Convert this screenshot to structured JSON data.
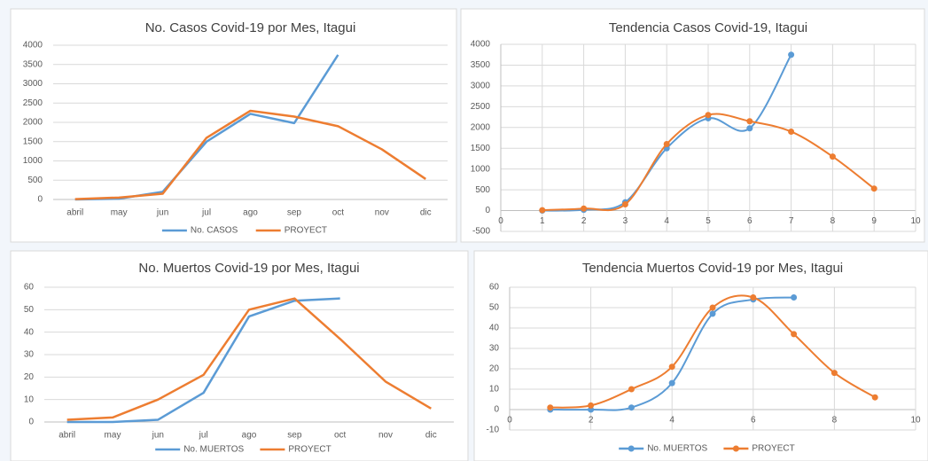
{
  "chart_data": [
    {
      "type": "line",
      "title": "No. Casos Covid-19 por Mes, Itagui",
      "categories": [
        "abril",
        "may",
        "jun",
        "jul",
        "ago",
        "sep",
        "oct",
        "nov",
        "dic"
      ],
      "series": [
        {
          "name": "No. CASOS",
          "color": "#5b9bd5",
          "values": [
            0,
            20,
            200,
            1500,
            2220,
            1980,
            3750,
            null,
            null
          ]
        },
        {
          "name": "PROYECT",
          "color": "#ed7d31",
          "values": [
            10,
            50,
            150,
            1600,
            2300,
            2150,
            1900,
            1300,
            530
          ]
        }
      ],
      "ylim": [
        0,
        4000
      ],
      "yticks": [
        0,
        500,
        1000,
        1500,
        2000,
        2500,
        3000,
        3500,
        4000
      ],
      "grid": true,
      "legend": "bottom"
    },
    {
      "type": "scatter",
      "title": "Tendencia Casos Covid-19, Itagui",
      "series": [
        {
          "name": "No. CASOS",
          "color": "#5b9bd5",
          "x": [
            1,
            2,
            3,
            4,
            5,
            6,
            7
          ],
          "values": [
            0,
            20,
            200,
            1500,
            2220,
            1980,
            3750
          ]
        },
        {
          "name": "PROYECT",
          "color": "#ed7d31",
          "x": [
            1,
            2,
            3,
            4,
            5,
            6,
            7,
            8,
            9
          ],
          "values": [
            10,
            50,
            150,
            1600,
            2300,
            2150,
            1900,
            1300,
            530
          ]
        }
      ],
      "xlim": [
        0,
        10
      ],
      "xticks": [
        0,
        1,
        2,
        3,
        4,
        5,
        6,
        7,
        8,
        9,
        10
      ],
      "ylim": [
        -500,
        4000
      ],
      "yticks": [
        -500,
        0,
        500,
        1000,
        1500,
        2000,
        2500,
        3000,
        3500,
        4000
      ],
      "grid": true,
      "smooth": true
    },
    {
      "type": "line",
      "title": "No. Muertos Covid-19 por Mes, Itagui",
      "categories": [
        "abril",
        "may",
        "jun",
        "jul",
        "ago",
        "sep",
        "oct",
        "nov",
        "dic"
      ],
      "series": [
        {
          "name": "No. MUERTOS",
          "color": "#5b9bd5",
          "values": [
            0,
            0,
            1,
            13,
            47,
            54,
            55,
            null,
            null
          ]
        },
        {
          "name": "PROYECT",
          "color": "#ed7d31",
          "values": [
            1,
            2,
            10,
            21,
            50,
            55,
            37,
            18,
            6
          ]
        }
      ],
      "ylim": [
        0,
        60
      ],
      "yticks": [
        0,
        10,
        20,
        30,
        40,
        50,
        60
      ],
      "grid": true,
      "legend": "bottom"
    },
    {
      "type": "scatter",
      "title": "Tendencia Muertos Covid-19 por Mes, Itagui",
      "series": [
        {
          "name": "No. MUERTOS",
          "color": "#5b9bd5",
          "x": [
            1,
            2,
            3,
            4,
            5,
            6,
            7
          ],
          "values": [
            0,
            0,
            1,
            13,
            47,
            54,
            55
          ]
        },
        {
          "name": "PROYECT",
          "color": "#ed7d31",
          "x": [
            1,
            2,
            3,
            4,
            5,
            6,
            7,
            8,
            9
          ],
          "values": [
            1,
            2,
            10,
            21,
            50,
            55,
            37,
            18,
            6
          ]
        }
      ],
      "xlim": [
        0,
        10
      ],
      "xticks": [
        0,
        2,
        4,
        6,
        8,
        10
      ],
      "ylim": [
        -10,
        60
      ],
      "yticks": [
        -10,
        0,
        10,
        20,
        30,
        40,
        50,
        60
      ],
      "grid": true,
      "smooth": true,
      "legend": "bottom"
    }
  ]
}
